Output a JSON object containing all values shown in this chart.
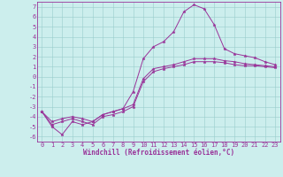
{
  "title": "",
  "xlabel": "Windchill (Refroidissement éolien,°C)",
  "bg_color": "#cceeed",
  "line_color": "#993399",
  "grid_color": "#99cccc",
  "xlim": [
    -0.5,
    23.5
  ],
  "ylim": [
    -6.5,
    7.5
  ],
  "xticks": [
    0,
    1,
    2,
    3,
    4,
    5,
    6,
    7,
    8,
    9,
    10,
    11,
    12,
    13,
    14,
    15,
    16,
    17,
    18,
    19,
    20,
    21,
    22,
    23
  ],
  "yticks": [
    -6,
    -5,
    -4,
    -3,
    -2,
    -1,
    0,
    1,
    2,
    3,
    4,
    5,
    6,
    7
  ],
  "series0": [
    -3.5,
    -5.0,
    -5.8,
    -4.5,
    -4.8,
    -4.5,
    -3.8,
    -3.5,
    -3.2,
    -1.5,
    1.8,
    3.0,
    3.5,
    4.5,
    6.5,
    7.2,
    6.8,
    5.2,
    2.8,
    2.3,
    2.1,
    1.9,
    1.5,
    1.2
  ],
  "series1": [
    -3.5,
    -4.8,
    -4.5,
    -4.2,
    -4.5,
    -4.8,
    -4.0,
    -3.8,
    -3.5,
    -3.0,
    -0.5,
    0.5,
    0.8,
    1.0,
    1.2,
    1.5,
    1.5,
    1.5,
    1.4,
    1.2,
    1.1,
    1.1,
    1.0,
    0.9
  ],
  "series2": [
    -3.5,
    -4.5,
    -4.2,
    -4.0,
    -4.2,
    -4.5,
    -3.8,
    -3.5,
    -3.2,
    -2.8,
    -0.2,
    0.8,
    1.0,
    1.2,
    1.5,
    1.8,
    1.8,
    1.8,
    1.6,
    1.5,
    1.3,
    1.2,
    1.1,
    1.0
  ],
  "tick_fontsize": 5,
  "xlabel_fontsize": 5.5,
  "lw": 0.7,
  "markersize": 2.5
}
